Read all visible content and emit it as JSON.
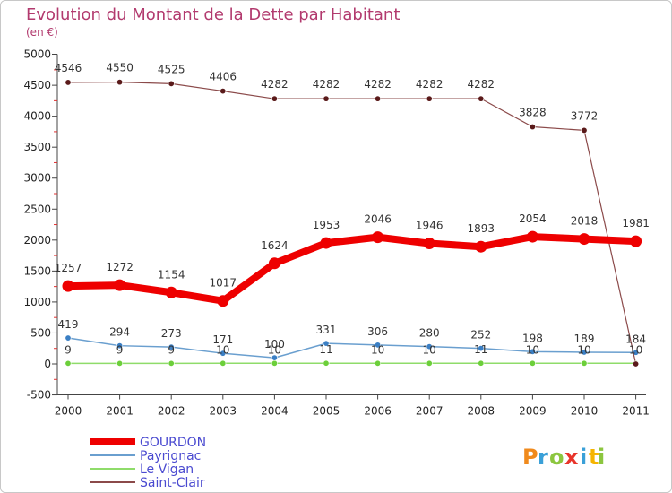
{
  "header": {
    "title": "Evolution du Montant de la Dette par Habitant",
    "subtitle": "(en €)"
  },
  "logo": {
    "text": "Proxiti",
    "colors": [
      "#f08a1c",
      "#3aa0d8",
      "#8cc63f",
      "#e8342a",
      "#3aa0d8",
      "#f5b400",
      "#8cc63f"
    ]
  },
  "chart_data": {
    "type": "line",
    "title": "Evolution du Montant de la Dette par Habitant",
    "ylabel": "(en €)",
    "xlabel": "",
    "categories": [
      "2000",
      "2001",
      "2002",
      "2003",
      "2004",
      "2005",
      "2006",
      "2007",
      "2008",
      "2009",
      "2010",
      "2011"
    ],
    "ylim": [
      -500,
      5000
    ],
    "yticks": [
      -500,
      0,
      500,
      1000,
      1500,
      2000,
      2500,
      3000,
      3500,
      4000,
      4500,
      5000
    ],
    "grid": false,
    "legend_position": "bottom-left",
    "series": [
      {
        "name": "GOURDON",
        "color": "#ee0000",
        "values": [
          1257,
          1272,
          1154,
          1017,
          1624,
          1953,
          2046,
          1946,
          1893,
          2054,
          2018,
          1981
        ]
      },
      {
        "name": "Payrignac",
        "color": "#5b9bd5",
        "values": [
          419,
          294,
          273,
          171,
          100,
          331,
          306,
          280,
          252,
          198,
          189,
          184
        ]
      },
      {
        "name": "Le Vigan",
        "color": "#7ed957",
        "values": [
          9,
          9,
          9,
          10,
          10,
          11,
          10,
          10,
          11,
          10,
          10,
          10
        ]
      },
      {
        "name": "Saint-Clair",
        "color": "#8b3a3a",
        "values": [
          4546,
          4550,
          4525,
          4406,
          4282,
          4282,
          4282,
          4282,
          4282,
          3828,
          3772,
          0
        ]
      }
    ]
  }
}
